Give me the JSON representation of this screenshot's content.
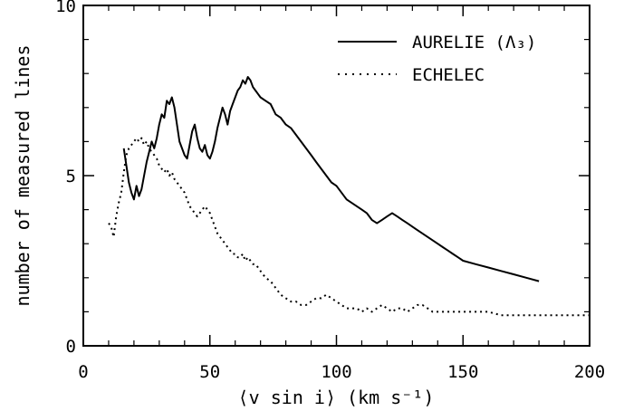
{
  "chart_data": {
    "type": "line",
    "title": "",
    "xlabel": "⟨v sin i⟩ (km s⁻¹)",
    "ylabel": "number of measured lines",
    "xlim": [
      0,
      200
    ],
    "ylim": [
      0,
      10
    ],
    "xticks": [
      0,
      50,
      100,
      150,
      200
    ],
    "yticks": [
      0,
      5,
      10
    ],
    "xtick_labels": [
      "0",
      "50",
      "100",
      "150",
      "200"
    ],
    "ytick_labels": [
      "0",
      "5",
      "10"
    ],
    "grid": false,
    "legend_position": "top-right",
    "series": [
      {
        "name": "AURELIE (Λ₃)",
        "style": "solid",
        "x": [
          16,
          17,
          18,
          19,
          20,
          21,
          22,
          23,
          24,
          25,
          26,
          27,
          28,
          29,
          30,
          31,
          32,
          33,
          34,
          35,
          36,
          37,
          38,
          39,
          40,
          41,
          42,
          43,
          44,
          45,
          46,
          47,
          48,
          49,
          50,
          51,
          52,
          53,
          54,
          55,
          56,
          57,
          58,
          59,
          60,
          61,
          62,
          63,
          64,
          65,
          66,
          67,
          68,
          69,
          70,
          72,
          74,
          76,
          78,
          80,
          82,
          84,
          86,
          88,
          90,
          92,
          94,
          96,
          98,
          100,
          102,
          104,
          106,
          108,
          110,
          112,
          114,
          116,
          118,
          120,
          122,
          124,
          126,
          128,
          130,
          132,
          134,
          136,
          138,
          140,
          142,
          144,
          146,
          148,
          150,
          155,
          160,
          165,
          170,
          175,
          180
        ],
        "y": [
          5.8,
          5.3,
          4.8,
          4.5,
          4.3,
          4.7,
          4.4,
          4.6,
          5.0,
          5.4,
          5.7,
          6.0,
          5.8,
          6.1,
          6.5,
          6.8,
          6.7,
          7.2,
          7.1,
          7.3,
          7.0,
          6.5,
          6.0,
          5.8,
          5.6,
          5.5,
          5.9,
          6.3,
          6.5,
          6.1,
          5.8,
          5.7,
          5.9,
          5.6,
          5.5,
          5.7,
          6.0,
          6.4,
          6.7,
          7.0,
          6.8,
          6.5,
          6.9,
          7.1,
          7.3,
          7.5,
          7.6,
          7.8,
          7.7,
          7.9,
          7.8,
          7.6,
          7.5,
          7.4,
          7.3,
          7.2,
          7.1,
          6.8,
          6.7,
          6.5,
          6.4,
          6.2,
          6.0,
          5.8,
          5.6,
          5.4,
          5.2,
          5.0,
          4.8,
          4.7,
          4.5,
          4.3,
          4.2,
          4.1,
          4.0,
          3.9,
          3.7,
          3.6,
          3.7,
          3.8,
          3.9,
          3.8,
          3.7,
          3.6,
          3.5,
          3.4,
          3.3,
          3.2,
          3.1,
          3.0,
          2.9,
          2.8,
          2.7,
          2.6,
          2.5,
          2.4,
          2.3,
          2.2,
          2.1,
          2.0,
          1.9
        ]
      },
      {
        "name": "ECHELEC",
        "style": "dotted",
        "x": [
          10,
          11,
          12,
          13,
          14,
          15,
          16,
          17,
          18,
          19,
          20,
          21,
          22,
          23,
          24,
          25,
          26,
          27,
          28,
          29,
          30,
          31,
          32,
          33,
          34,
          35,
          36,
          37,
          38,
          39,
          40,
          41,
          42,
          43,
          44,
          45,
          46,
          47,
          48,
          49,
          50,
          51,
          52,
          53,
          54,
          55,
          56,
          57,
          58,
          59,
          60,
          61,
          62,
          63,
          64,
          65,
          66,
          67,
          68,
          69,
          70,
          72,
          74,
          76,
          78,
          80,
          82,
          84,
          86,
          88,
          90,
          92,
          94,
          96,
          98,
          100,
          102,
          104,
          106,
          108,
          110,
          112,
          114,
          116,
          118,
          120,
          122,
          124,
          126,
          128,
          130,
          132,
          134,
          136,
          138,
          140,
          145,
          150,
          155,
          160,
          165,
          170,
          175,
          180,
          185,
          190,
          195,
          200
        ],
        "y": [
          3.6,
          3.5,
          3.2,
          3.8,
          4.2,
          4.5,
          5.1,
          5.6,
          5.8,
          5.9,
          6.0,
          6.1,
          6.0,
          6.1,
          5.9,
          6.0,
          5.8,
          5.7,
          5.6,
          5.5,
          5.3,
          5.2,
          5.1,
          5.2,
          5.0,
          5.1,
          4.9,
          4.8,
          4.7,
          4.6,
          4.5,
          4.3,
          4.1,
          4.0,
          3.9,
          3.8,
          3.9,
          4.0,
          4.1,
          4.0,
          3.9,
          3.7,
          3.5,
          3.3,
          3.2,
          3.1,
          3.0,
          2.9,
          2.8,
          2.7,
          2.7,
          2.6,
          2.6,
          2.7,
          2.5,
          2.6,
          2.5,
          2.4,
          2.4,
          2.3,
          2.2,
          2.0,
          1.9,
          1.7,
          1.5,
          1.4,
          1.3,
          1.3,
          1.2,
          1.2,
          1.3,
          1.4,
          1.4,
          1.5,
          1.4,
          1.3,
          1.2,
          1.1,
          1.1,
          1.1,
          1.0,
          1.1,
          1.0,
          1.1,
          1.2,
          1.1,
          1.0,
          1.1,
          1.1,
          1.0,
          1.1,
          1.2,
          1.2,
          1.1,
          1.0,
          1.0,
          1.0,
          1.0,
          1.0,
          1.0,
          0.9,
          0.9,
          0.9,
          0.9,
          0.9,
          0.9,
          0.9,
          0.9
        ]
      }
    ]
  }
}
